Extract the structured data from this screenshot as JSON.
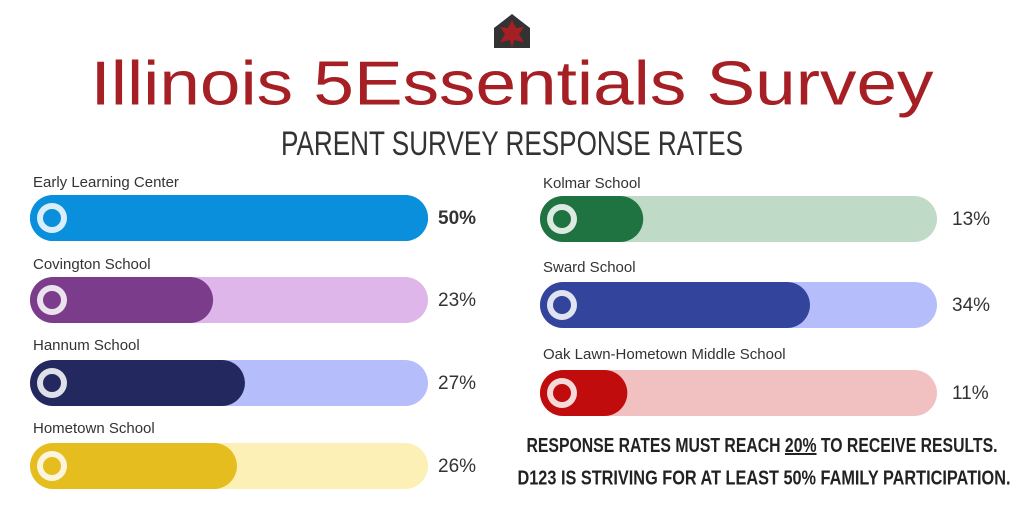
{
  "chart_data": {
    "type": "bar",
    "title": "Illinois 5Essentials Survey",
    "subtitle": "PARENT SURVEY RESPONSE RATES",
    "categories": [
      "Early Learning Center",
      "Covington School",
      "Hannum School",
      "Hometown School",
      "Kolmar School",
      "Sward School",
      "Oak Lawn-Hometown Middle School"
    ],
    "values": [
      50,
      23,
      27,
      26,
      13,
      34,
      11
    ],
    "value_labels": [
      "50%",
      "23%",
      "27%",
      "26%",
      "13%",
      "34%",
      "11%"
    ],
    "colors": [
      "#0a8fdc",
      "#7b3c8c",
      "#23285e",
      "#e6bd1e",
      "#1f7340",
      "#33449c",
      "#c00c0c"
    ],
    "track_colors": [
      "#0a8fdc",
      "#deb6ea",
      "#b6bdfb",
      "#fdf0b6",
      "#bfdbc8",
      "#b6bdfb",
      "#f1c1c1"
    ],
    "xlim": [
      0,
      50
    ],
    "notes": [
      [
        "RESPONSE RATES MUST REACH ",
        "20%",
        " TO RECEIVE RESULTS."
      ],
      [
        "D123 IS STRIVING FOR AT LEAST 50% FAMILY PARTICIPATION."
      ]
    ]
  }
}
